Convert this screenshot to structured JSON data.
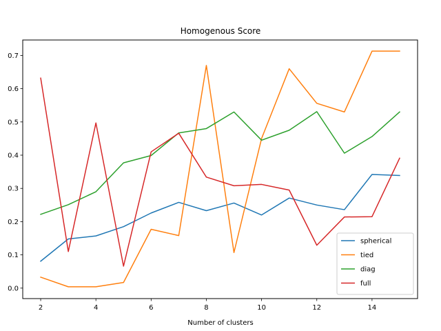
{
  "chart_data": {
    "type": "line",
    "title": "Homogenous Score",
    "xlabel": "Number of clusters",
    "ylabel": "",
    "x": [
      2,
      3,
      4,
      5,
      6,
      7,
      8,
      9,
      10,
      11,
      12,
      13,
      14,
      15
    ],
    "xlim": [
      1.35,
      15.65
    ],
    "ylim": [
      -0.0315,
      0.7465
    ],
    "xticks": [
      "2",
      "4",
      "6",
      "8",
      "10",
      "12",
      "14"
    ],
    "yticks": [
      "0.0",
      "0.1",
      "0.2",
      "0.3",
      "0.4",
      "0.5",
      "0.6",
      "0.7"
    ],
    "grid": false,
    "legend_position": "lower-right",
    "series": [
      {
        "name": "spherical",
        "color": "#1f77b4",
        "values": [
          0.081,
          0.148,
          0.157,
          0.185,
          0.226,
          0.258,
          0.233,
          0.256,
          0.22,
          0.271,
          0.25,
          0.236,
          0.342,
          0.339
        ]
      },
      {
        "name": "tied",
        "color": "#ff7f0e",
        "values": [
          0.033,
          0.004,
          0.004,
          0.017,
          0.177,
          0.158,
          0.67,
          0.107,
          0.45,
          0.66,
          0.556,
          0.53,
          0.713,
          0.713
        ]
      },
      {
        "name": "diag",
        "color": "#2ca02c",
        "values": [
          0.222,
          0.251,
          0.29,
          0.377,
          0.399,
          0.467,
          0.48,
          0.53,
          0.445,
          0.475,
          0.531,
          0.406,
          0.456,
          0.53
        ]
      },
      {
        "name": "full",
        "color": "#d62728",
        "values": [
          0.632,
          0.11,
          0.497,
          0.066,
          0.41,
          0.466,
          0.334,
          0.308,
          0.312,
          0.295,
          0.129,
          0.214,
          0.215,
          0.391
        ]
      }
    ]
  }
}
